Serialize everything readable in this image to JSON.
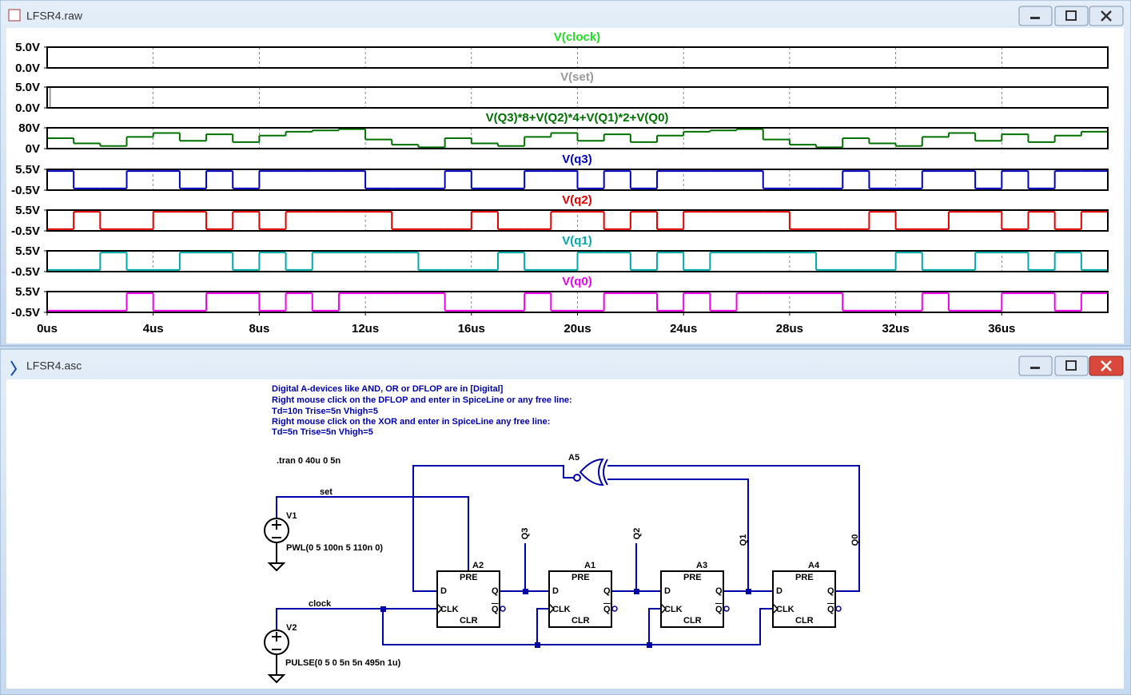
{
  "windows": [
    {
      "title": "LFSR4.raw"
    },
    {
      "title": "LFSR4.asc"
    }
  ],
  "chart_data": [
    {
      "type": "line",
      "title": "V(clock)",
      "color": "#22dd22",
      "step": true,
      "grid": true,
      "x": [
        0,
        1,
        2,
        3,
        4,
        5,
        6,
        7,
        8,
        9,
        10,
        11,
        12,
        13,
        14,
        15,
        16,
        17,
        18,
        19,
        20,
        21,
        22,
        23,
        24,
        25,
        26,
        27,
        28,
        29,
        30,
        31,
        32,
        33,
        34,
        35,
        36,
        37,
        38,
        39
      ],
      "values": [
        5,
        5,
        5,
        5,
        5,
        5,
        5,
        5,
        5,
        5,
        5,
        5,
        5,
        5,
        5,
        5,
        5,
        5,
        5,
        5,
        5,
        5,
        5,
        5,
        5,
        5,
        5,
        5,
        5,
        5,
        5,
        5,
        5,
        5,
        5,
        5,
        5,
        5,
        5,
        5
      ],
      "xlim": [
        0,
        40
      ],
      "ylim": [
        0,
        5
      ],
      "yticks": [
        {
          "value": 5,
          "label": "5.0V"
        },
        {
          "value": 0,
          "label": "0.0V"
        }
      ]
    },
    {
      "type": "line",
      "title": "V(set)",
      "color": "#999999",
      "step": true,
      "grid": true,
      "x": [
        0,
        0.1,
        0.11
      ],
      "values": [
        5,
        5,
        0
      ],
      "xlim": [
        0,
        40
      ],
      "ylim": [
        0,
        5
      ],
      "yticks": [
        {
          "value": 5,
          "label": "5.0V"
        },
        {
          "value": 0,
          "label": "0.0V"
        }
      ]
    },
    {
      "type": "line",
      "title": "V(Q3)*8+V(Q2)*4+V(Q1)*2+V(Q0)",
      "color": "#007000",
      "step": true,
      "grid": true,
      "x": [
        0,
        1,
        2,
        3,
        4,
        5,
        6,
        7,
        8,
        9,
        10,
        11,
        12,
        13,
        14,
        15,
        16,
        17,
        18,
        19,
        20,
        21,
        22,
        23,
        24,
        25,
        26,
        27,
        28,
        29,
        30,
        31,
        32,
        33,
        34,
        35,
        36,
        37,
        38,
        39
      ],
      "values": [
        40,
        20,
        10,
        45,
        60,
        30,
        55,
        25,
        50,
        65,
        70,
        75,
        35,
        15,
        5,
        40,
        20,
        10,
        45,
        60,
        30,
        55,
        25,
        50,
        65,
        70,
        75,
        35,
        15,
        5,
        40,
        20,
        10,
        45,
        60,
        30,
        55,
        25,
        50,
        65
      ],
      "xlim": [
        0,
        40
      ],
      "ylim": [
        0,
        80
      ],
      "yticks": [
        {
          "value": 80,
          "label": "80V"
        },
        {
          "value": 0,
          "label": "0V"
        }
      ]
    },
    {
      "type": "line",
      "title": "V(q3)",
      "color": "#0000c0",
      "step": true,
      "grid": true,
      "x": [
        0,
        1,
        2,
        3,
        4,
        5,
        6,
        7,
        8,
        9,
        10,
        11,
        12,
        13,
        14,
        15,
        16,
        17,
        18,
        19,
        20,
        21,
        22,
        23,
        24,
        25,
        26,
        27,
        28,
        29,
        30,
        31,
        32,
        33,
        34,
        35,
        36,
        37,
        38,
        39
      ],
      "values": [
        5,
        0,
        0,
        5,
        5,
        0,
        5,
        0,
        5,
        5,
        5,
        5,
        0,
        0,
        0,
        5,
        0,
        0,
        5,
        5,
        0,
        5,
        0,
        5,
        5,
        5,
        5,
        0,
        0,
        0,
        5,
        0,
        0,
        5,
        5,
        0,
        5,
        0,
        5,
        5
      ],
      "xlim": [
        0,
        40
      ],
      "ylim": [
        -0.5,
        5.5
      ],
      "yticks": [
        {
          "value": 5.5,
          "label": "5.5V"
        },
        {
          "value": -0.5,
          "label": "-0.5V"
        }
      ]
    },
    {
      "type": "line",
      "title": "V(q2)",
      "color": "#e00000",
      "step": true,
      "grid": true,
      "x": [
        0,
        1,
        2,
        3,
        4,
        5,
        6,
        7,
        8,
        9,
        10,
        11,
        12,
        13,
        14,
        15,
        16,
        17,
        18,
        19,
        20,
        21,
        22,
        23,
        24,
        25,
        26,
        27,
        28,
        29,
        30,
        31,
        32,
        33,
        34,
        35,
        36,
        37,
        38,
        39
      ],
      "values": [
        0,
        5,
        0,
        0,
        5,
        5,
        0,
        5,
        0,
        5,
        5,
        5,
        5,
        0,
        0,
        0,
        5,
        0,
        0,
        5,
        5,
        0,
        5,
        0,
        5,
        5,
        5,
        5,
        0,
        0,
        0,
        5,
        0,
        0,
        5,
        5,
        0,
        5,
        0,
        5
      ],
      "xlim": [
        0,
        40
      ],
      "ylim": [
        -0.5,
        5.5
      ],
      "yticks": [
        {
          "value": 5.5,
          "label": "5.5V"
        },
        {
          "value": -0.5,
          "label": "-0.5V"
        }
      ]
    },
    {
      "type": "line",
      "title": "V(q1)",
      "color": "#00a8a8",
      "step": true,
      "grid": true,
      "x": [
        0,
        1,
        2,
        3,
        4,
        5,
        6,
        7,
        8,
        9,
        10,
        11,
        12,
        13,
        14,
        15,
        16,
        17,
        18,
        19,
        20,
        21,
        22,
        23,
        24,
        25,
        26,
        27,
        28,
        29,
        30,
        31,
        32,
        33,
        34,
        35,
        36,
        37,
        38,
        39
      ],
      "values": [
        0,
        0,
        5,
        0,
        0,
        5,
        5,
        0,
        5,
        0,
        5,
        5,
        5,
        5,
        0,
        0,
        0,
        5,
        0,
        0,
        5,
        5,
        0,
        5,
        0,
        5,
        5,
        5,
        5,
        0,
        0,
        0,
        5,
        0,
        0,
        5,
        5,
        0,
        5,
        0
      ],
      "xlim": [
        0,
        40
      ],
      "ylim": [
        -0.5,
        5.5
      ],
      "yticks": [
        {
          "value": 5.5,
          "label": "5.5V"
        },
        {
          "value": -0.5,
          "label": "-0.5V"
        }
      ]
    },
    {
      "type": "line",
      "title": "V(q0)",
      "color": "#ee00ee",
      "step": true,
      "grid": true,
      "x": [
        0,
        1,
        2,
        3,
        4,
        5,
        6,
        7,
        8,
        9,
        10,
        11,
        12,
        13,
        14,
        15,
        16,
        17,
        18,
        19,
        20,
        21,
        22,
        23,
        24,
        25,
        26,
        27,
        28,
        29,
        30,
        31,
        32,
        33,
        34,
        35,
        36,
        37,
        38,
        39
      ],
      "values": [
        0,
        0,
        0,
        5,
        0,
        0,
        5,
        5,
        0,
        5,
        0,
        5,
        5,
        5,
        5,
        0,
        0,
        0,
        5,
        0,
        0,
        5,
        5,
        0,
        5,
        0,
        5,
        5,
        5,
        5,
        0,
        0,
        0,
        5,
        0,
        0,
        5,
        5,
        0,
        5
      ],
      "xlim": [
        0,
        40
      ],
      "ylim": [
        -0.5,
        5.5
      ],
      "yticks": [
        {
          "value": 5.5,
          "label": "5.5V"
        },
        {
          "value": -0.5,
          "label": "-0.5V"
        }
      ],
      "xticks": [
        {
          "value": 0,
          "label": "0us"
        },
        {
          "value": 4,
          "label": "4us"
        },
        {
          "value": 8,
          "label": "8us"
        },
        {
          "value": 12,
          "label": "12us"
        },
        {
          "value": 16,
          "label": "16us"
        },
        {
          "value": 20,
          "label": "20us"
        },
        {
          "value": 24,
          "label": "24us"
        },
        {
          "value": 28,
          "label": "28us"
        },
        {
          "value": 32,
          "label": "32us"
        },
        {
          "value": 36,
          "label": "36us"
        }
      ]
    }
  ],
  "schematic": {
    "comments": [
      "Digital A-devices like AND, OR or DFLOP are in [Digital]",
      "Right mouse click on the DFLOP and enter in SpiceLine or any free line:",
      "Td=10n Trise=5n  Vhigh=5",
      "Right mouse click on the XOR and enter in SpiceLine any free line:",
      "Td=5n Trise=5n  Vhigh=5"
    ],
    "directive": ".tran 0 40u 0 5n",
    "nets": [
      "set",
      "clock",
      "Q3",
      "Q2",
      "Q1",
      "Q0"
    ],
    "sources": [
      {
        "name": "V1",
        "value": "PWL(0 5 100n 5 110n 0)"
      },
      {
        "name": "V2",
        "value": "PULSE(0 5 0 5n 5n 495n 1u)"
      }
    ],
    "gate": {
      "name": "A5"
    },
    "flops": [
      {
        "name": "A2"
      },
      {
        "name": "A1"
      },
      {
        "name": "A3"
      },
      {
        "name": "A4"
      }
    ],
    "pins": {
      "pre": "PRE",
      "d": "D",
      "clk": "CLK",
      "q": "Q",
      "qbar": "Q",
      "clr": "CLR"
    }
  }
}
